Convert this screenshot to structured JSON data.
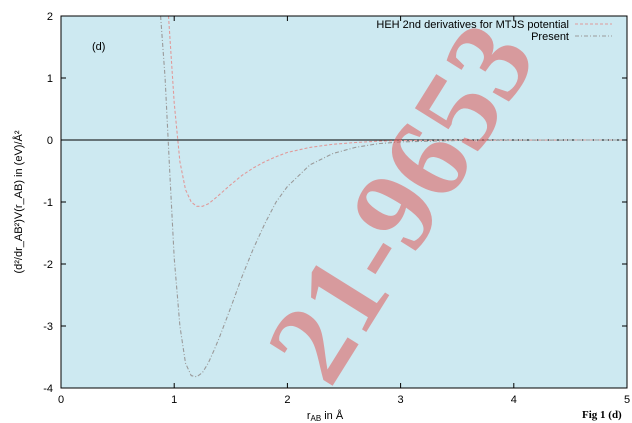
{
  "chart_data": {
    "type": "line",
    "xlabel_main": "r",
    "xlabel_sub": "AB",
    "xlabel_tail": " in Å",
    "ylabel": "(d²/dr_AB²)V(r_AB) in (eV)/Å²",
    "panel_label": "(d)",
    "figure_label": "Fig 1 (d)",
    "watermark": "21-9653",
    "xlim": [
      0,
      5
    ],
    "ylim": [
      -4,
      2
    ],
    "xticks": [
      "0",
      "1",
      "2",
      "3",
      "4",
      "5"
    ],
    "yticks": [
      "-4",
      "-3",
      "-2",
      "-1",
      "0",
      "1",
      "2"
    ],
    "legend_position": "top-right",
    "background_color": "#cde9f1",
    "series": [
      {
        "name": "HEH 2nd derivatives for MTJS potential",
        "color": "#e09a9a",
        "x": [
          0.95,
          1.0,
          1.05,
          1.1,
          1.15,
          1.2,
          1.25,
          1.3,
          1.35,
          1.4,
          1.5,
          1.6,
          1.7,
          1.8,
          1.9,
          2.0,
          2.2,
          2.4,
          2.6,
          2.8,
          3.0,
          3.5,
          4.0,
          4.5,
          5.0
        ],
        "y": [
          2.0,
          0.6,
          -0.35,
          -0.8,
          -1.0,
          -1.07,
          -1.07,
          -1.03,
          -0.96,
          -0.88,
          -0.72,
          -0.57,
          -0.45,
          -0.35,
          -0.27,
          -0.2,
          -0.12,
          -0.07,
          -0.04,
          -0.02,
          -0.01,
          -0.003,
          -0.001,
          0.0,
          0.0
        ]
      },
      {
        "name": "Present",
        "color": "#9a9a9a",
        "x": [
          0.88,
          0.92,
          0.96,
          1.0,
          1.05,
          1.1,
          1.15,
          1.2,
          1.25,
          1.3,
          1.35,
          1.4,
          1.5,
          1.6,
          1.7,
          1.8,
          1.9,
          2.0,
          2.2,
          2.4,
          2.6,
          2.8,
          3.0,
          3.5,
          4.0,
          4.5,
          5.0
        ],
        "y": [
          2.0,
          1.0,
          -0.5,
          -1.9,
          -3.0,
          -3.6,
          -3.8,
          -3.82,
          -3.75,
          -3.6,
          -3.4,
          -3.18,
          -2.7,
          -2.2,
          -1.75,
          -1.35,
          -1.0,
          -0.75,
          -0.4,
          -0.22,
          -0.12,
          -0.06,
          -0.03,
          -0.008,
          -0.002,
          0.0,
          0.0
        ]
      }
    ]
  }
}
